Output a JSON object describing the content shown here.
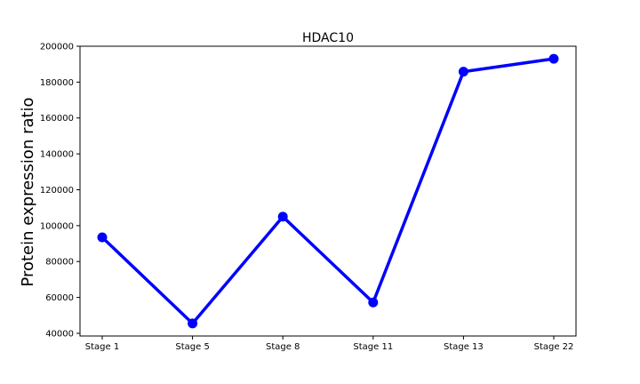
{
  "chart_data": {
    "type": "line",
    "title": "HDAC10",
    "xlabel": "",
    "ylabel": "Protein expression ratio",
    "categories": [
      "Stage 1",
      "Stage 5",
      "Stage 8",
      "Stage 11",
      "Stage 13",
      "Stage 22"
    ],
    "series": [
      {
        "values": [
          93500,
          45500,
          105000,
          57200,
          185800,
          193000
        ],
        "color": "#0000ff",
        "marker": "circle"
      }
    ],
    "ylim": [
      38500,
      200000
    ],
    "yticks": [
      40000,
      60000,
      80000,
      100000,
      120000,
      140000,
      160000,
      180000,
      200000
    ],
    "ytick_labels": [
      "40000",
      "60000",
      "80000",
      "100000",
      "120000",
      "140000",
      "160000",
      "180000",
      "200000"
    ],
    "grid": false,
    "legend": "none"
  }
}
